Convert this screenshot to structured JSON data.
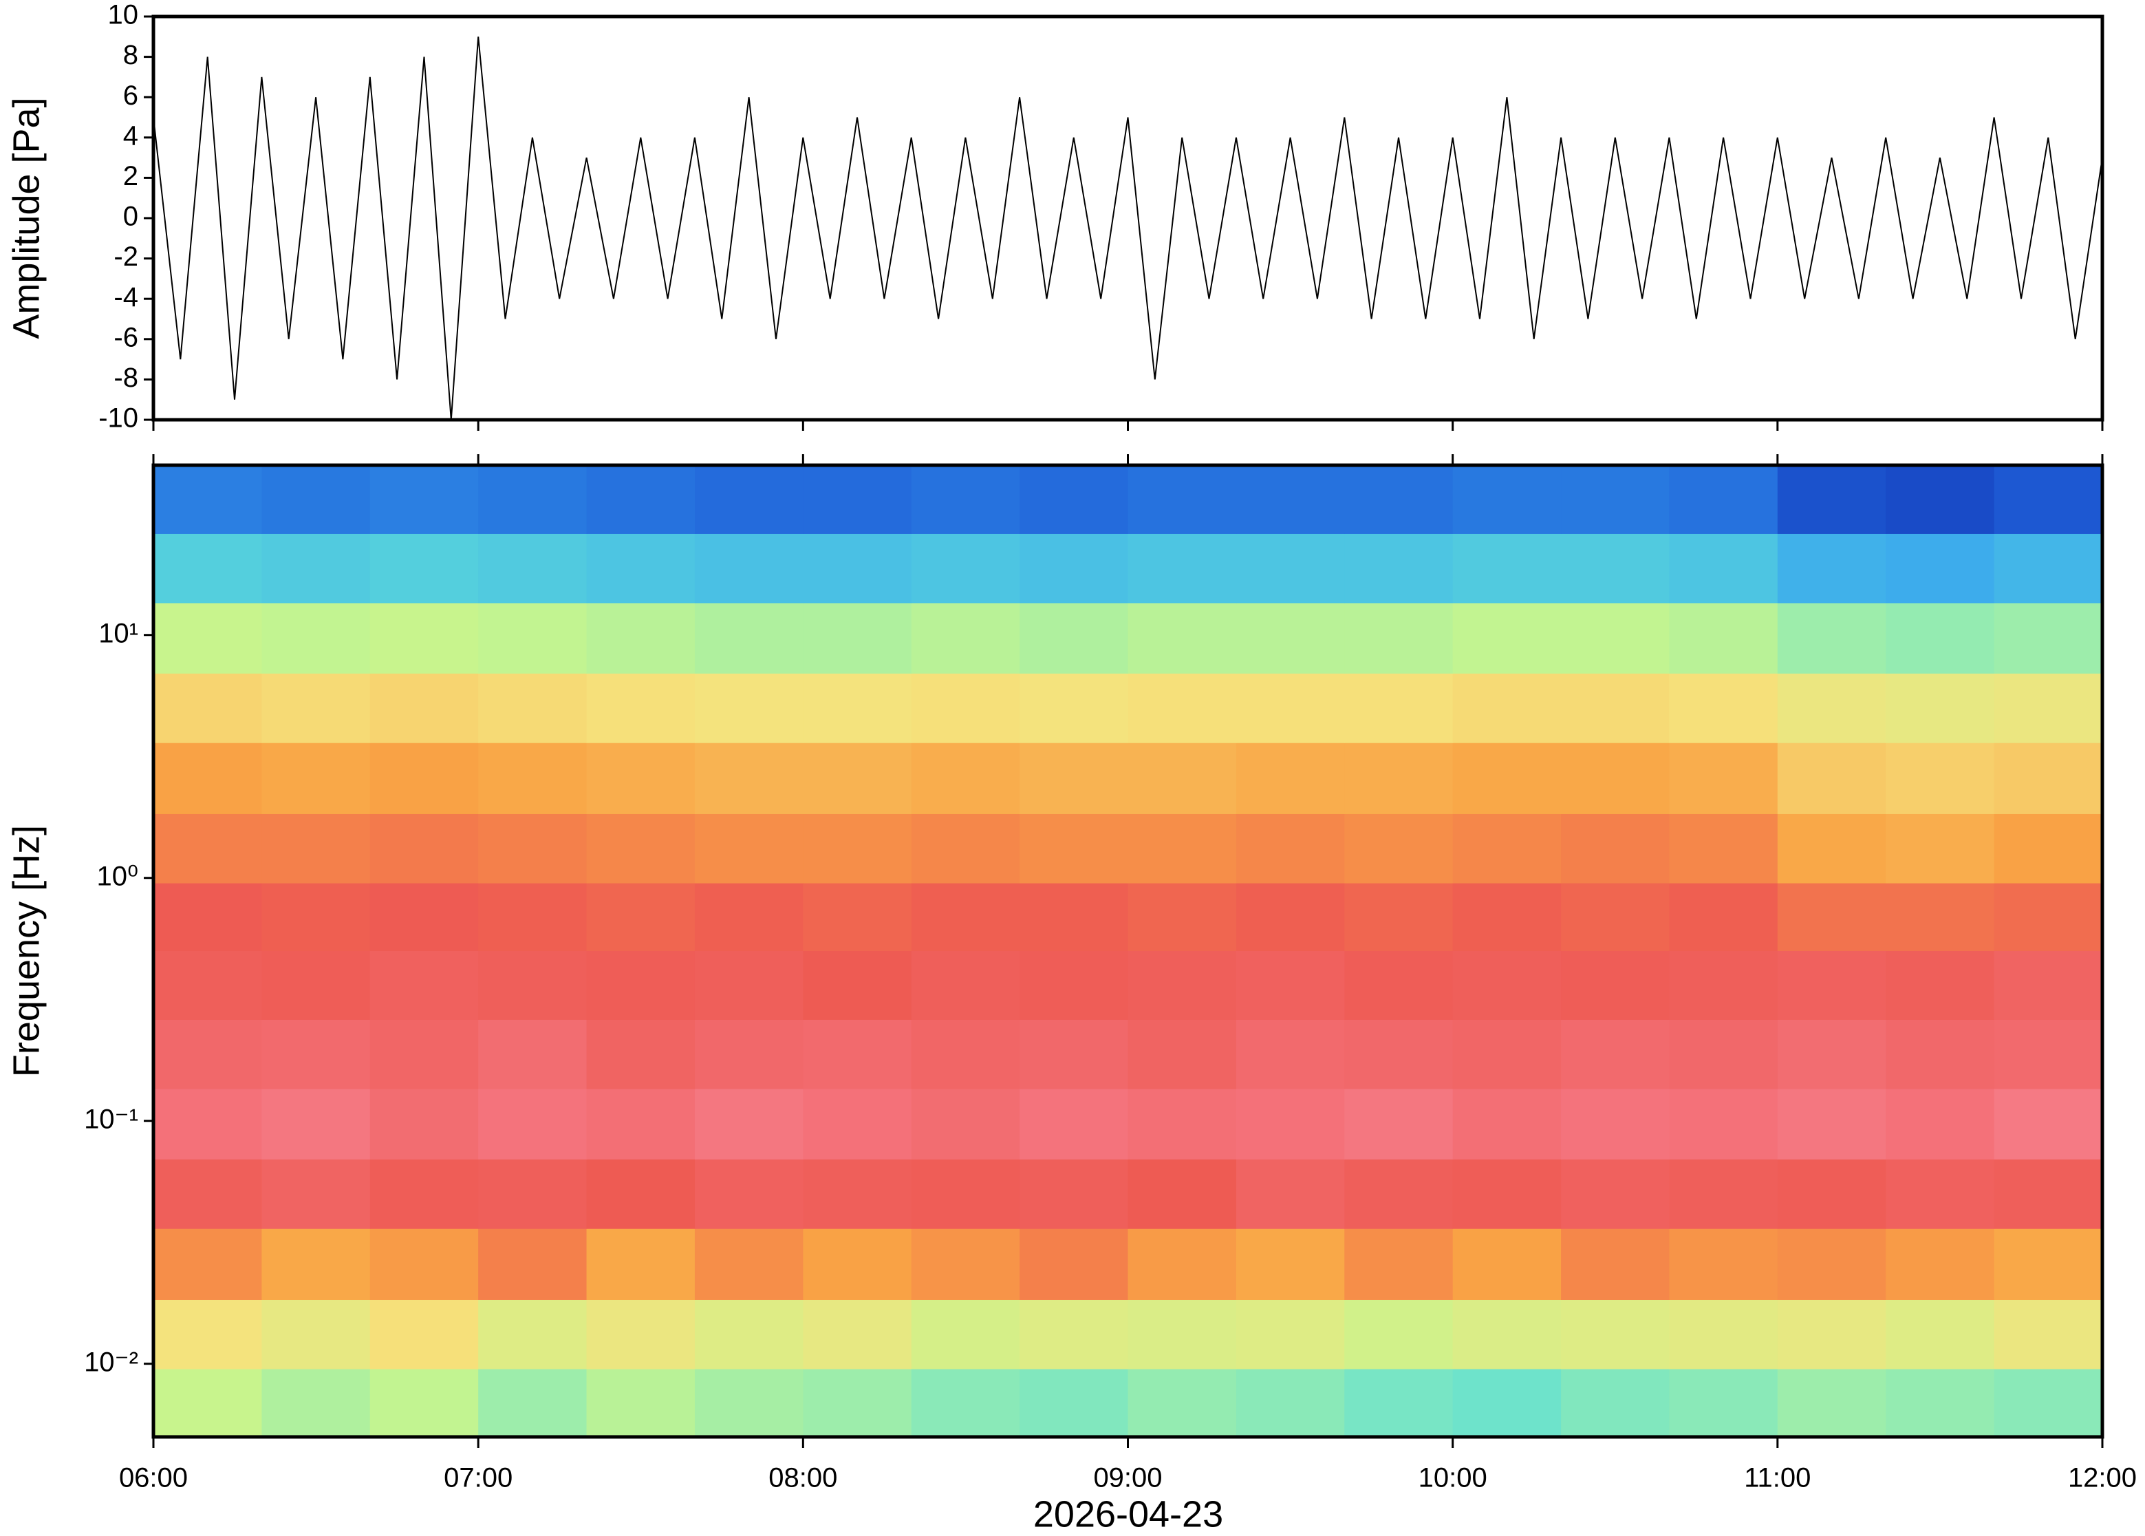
{
  "chart_data": [
    {
      "type": "line",
      "ylabel": "Amplitude [Pa]",
      "x": [
        "06:00",
        "06:05",
        "06:10",
        "06:15",
        "06:20",
        "06:25",
        "06:30",
        "06:35",
        "06:40",
        "06:45",
        "06:50",
        "06:55",
        "07:00",
        "07:05",
        "07:10",
        "07:15",
        "07:20",
        "07:25",
        "07:30",
        "07:35",
        "07:40",
        "07:45",
        "07:50",
        "07:55",
        "08:00",
        "08:05",
        "08:10",
        "08:15",
        "08:20",
        "08:25",
        "08:30",
        "08:35",
        "08:40",
        "08:45",
        "08:50",
        "08:55",
        "09:00",
        "09:05",
        "09:10",
        "09:15",
        "09:20",
        "09:25",
        "09:30",
        "09:35",
        "09:40",
        "09:45",
        "09:50",
        "09:55",
        "10:00",
        "10:05",
        "10:10",
        "10:15",
        "10:20",
        "10:25",
        "10:30",
        "10:35",
        "10:40",
        "10:45",
        "10:50",
        "10:55",
        "11:00",
        "11:05",
        "11:10",
        "11:15",
        "11:20",
        "11:25",
        "11:30",
        "11:35",
        "11:40",
        "11:45",
        "11:50",
        "11:55",
        "12:00"
      ],
      "values": [
        5,
        -7,
        8,
        -9,
        7,
        -6,
        6,
        -7,
        7,
        -8,
        8,
        -10,
        9,
        -5,
        4,
        -4,
        3,
        -4,
        4,
        -4,
        4,
        -5,
        6,
        -6,
        4,
        -4,
        5,
        -4,
        4,
        -5,
        4,
        -4,
        6,
        -4,
        4,
        -4,
        5,
        -8,
        4,
        -4,
        4,
        -4,
        4,
        -4,
        5,
        -5,
        4,
        -5,
        4,
        -5,
        6,
        -6,
        4,
        -5,
        4,
        -4,
        4,
        -5,
        4,
        -4,
        4,
        -4,
        3,
        -4,
        4,
        -4,
        3,
        -4,
        5,
        -4,
        4,
        -6,
        3
      ],
      "color": "#000000",
      "xlim": [
        "06:00",
        "12:00"
      ],
      "ylim": [
        -10,
        10
      ],
      "yticks": [
        -10,
        -8,
        -6,
        -4,
        -2,
        0,
        2,
        4,
        6,
        8,
        10
      ]
    },
    {
      "type": "heatmap",
      "ylabel": "Frequency [Hz]",
      "xlabel": "2026-04-23",
      "x": [
        "06:10",
        "06:30",
        "06:50",
        "07:10",
        "07:30",
        "07:50",
        "08:10",
        "08:30",
        "08:50",
        "09:10",
        "09:30",
        "09:50",
        "10:10",
        "10:30",
        "10:50",
        "11:10",
        "11:30",
        "11:50"
      ],
      "y": [
        0.007,
        0.013,
        0.026,
        0.05,
        0.097,
        0.19,
        0.36,
        0.7,
        1.3,
        2.6,
        5,
        9.7,
        19,
        36
      ],
      "values": [
        [
          0.45,
          0.42,
          0.44,
          0.4,
          0.43,
          0.41,
          0.4,
          0.38,
          0.37,
          0.39,
          0.38,
          0.36,
          0.35,
          0.37,
          0.38,
          0.4,
          0.39,
          0.38
        ],
        [
          0.55,
          0.52,
          0.56,
          0.5,
          0.53,
          0.5,
          0.52,
          0.48,
          0.5,
          0.49,
          0.5,
          0.47,
          0.49,
          0.5,
          0.51,
          0.52,
          0.5,
          0.53
        ],
        [
          0.7,
          0.66,
          0.68,
          0.72,
          0.66,
          0.7,
          0.67,
          0.69,
          0.72,
          0.68,
          0.66,
          0.7,
          0.67,
          0.71,
          0.69,
          0.7,
          0.68,
          0.66
        ],
        [
          0.8,
          0.82,
          0.79,
          0.8,
          0.78,
          0.81,
          0.8,
          0.79,
          0.8,
          0.78,
          0.82,
          0.8,
          0.79,
          0.81,
          0.8,
          0.79,
          0.81,
          0.8
        ],
        [
          0.88,
          0.9,
          0.86,
          0.89,
          0.87,
          0.9,
          0.88,
          0.86,
          0.89,
          0.87,
          0.88,
          0.9,
          0.87,
          0.89,
          0.88,
          0.9,
          0.88,
          0.91
        ],
        [
          0.84,
          0.85,
          0.83,
          0.86,
          0.82,
          0.84,
          0.85,
          0.83,
          0.84,
          0.82,
          0.85,
          0.84,
          0.83,
          0.85,
          0.84,
          0.86,
          0.84,
          0.85
        ],
        [
          0.8,
          0.79,
          0.81,
          0.8,
          0.79,
          0.8,
          0.78,
          0.8,
          0.79,
          0.8,
          0.81,
          0.79,
          0.8,
          0.79,
          0.8,
          0.81,
          0.8,
          0.82
        ],
        [
          0.78,
          0.77,
          0.78,
          0.77,
          0.76,
          0.77,
          0.76,
          0.77,
          0.77,
          0.76,
          0.77,
          0.76,
          0.77,
          0.76,
          0.77,
          0.74,
          0.74,
          0.75
        ],
        [
          0.72,
          0.72,
          0.73,
          0.72,
          0.71,
          0.7,
          0.7,
          0.71,
          0.7,
          0.7,
          0.71,
          0.7,
          0.71,
          0.72,
          0.71,
          0.66,
          0.65,
          0.67
        ],
        [
          0.67,
          0.66,
          0.67,
          0.66,
          0.65,
          0.64,
          0.64,
          0.65,
          0.64,
          0.64,
          0.65,
          0.65,
          0.66,
          0.66,
          0.65,
          0.6,
          0.59,
          0.6
        ],
        [
          0.58,
          0.57,
          0.58,
          0.57,
          0.56,
          0.55,
          0.55,
          0.56,
          0.55,
          0.56,
          0.56,
          0.56,
          0.57,
          0.57,
          0.56,
          0.53,
          0.52,
          0.53
        ],
        [
          0.45,
          0.44,
          0.45,
          0.44,
          0.43,
          0.42,
          0.42,
          0.43,
          0.42,
          0.43,
          0.43,
          0.43,
          0.44,
          0.44,
          0.43,
          0.4,
          0.39,
          0.4
        ],
        [
          0.3,
          0.29,
          0.3,
          0.29,
          0.28,
          0.27,
          0.27,
          0.28,
          0.27,
          0.28,
          0.28,
          0.28,
          0.29,
          0.29,
          0.28,
          0.24,
          0.23,
          0.25
        ],
        [
          0.16,
          0.15,
          0.16,
          0.15,
          0.14,
          0.13,
          0.13,
          0.14,
          0.13,
          0.14,
          0.14,
          0.14,
          0.15,
          0.15,
          0.14,
          0.09,
          0.08,
          0.1
        ]
      ],
      "colors": [
        "#08189a",
        "#1f5fd8",
        "#3aa8ee",
        "#5fe0d6",
        "#c6f58e",
        "#f6e27c",
        "#f9a445",
        "#ee5a52",
        "#f4737c",
        "#f89aa8"
      ],
      "zlim": [
        0,
        1
      ],
      "xlim": [
        "06:00",
        "12:00"
      ],
      "xticks": [
        "06:00",
        "07:00",
        "08:00",
        "09:00",
        "10:00",
        "11:00",
        "12:00"
      ],
      "ylim": [
        0.005,
        50
      ],
      "log_y": true,
      "yticks": [
        {
          "value": 0.01,
          "label": "10⁻²"
        },
        {
          "value": 0.1,
          "label": "10⁻¹"
        },
        {
          "value": 1,
          "label": "10⁰"
        },
        {
          "value": 10,
          "label": "10¹"
        }
      ]
    }
  ]
}
